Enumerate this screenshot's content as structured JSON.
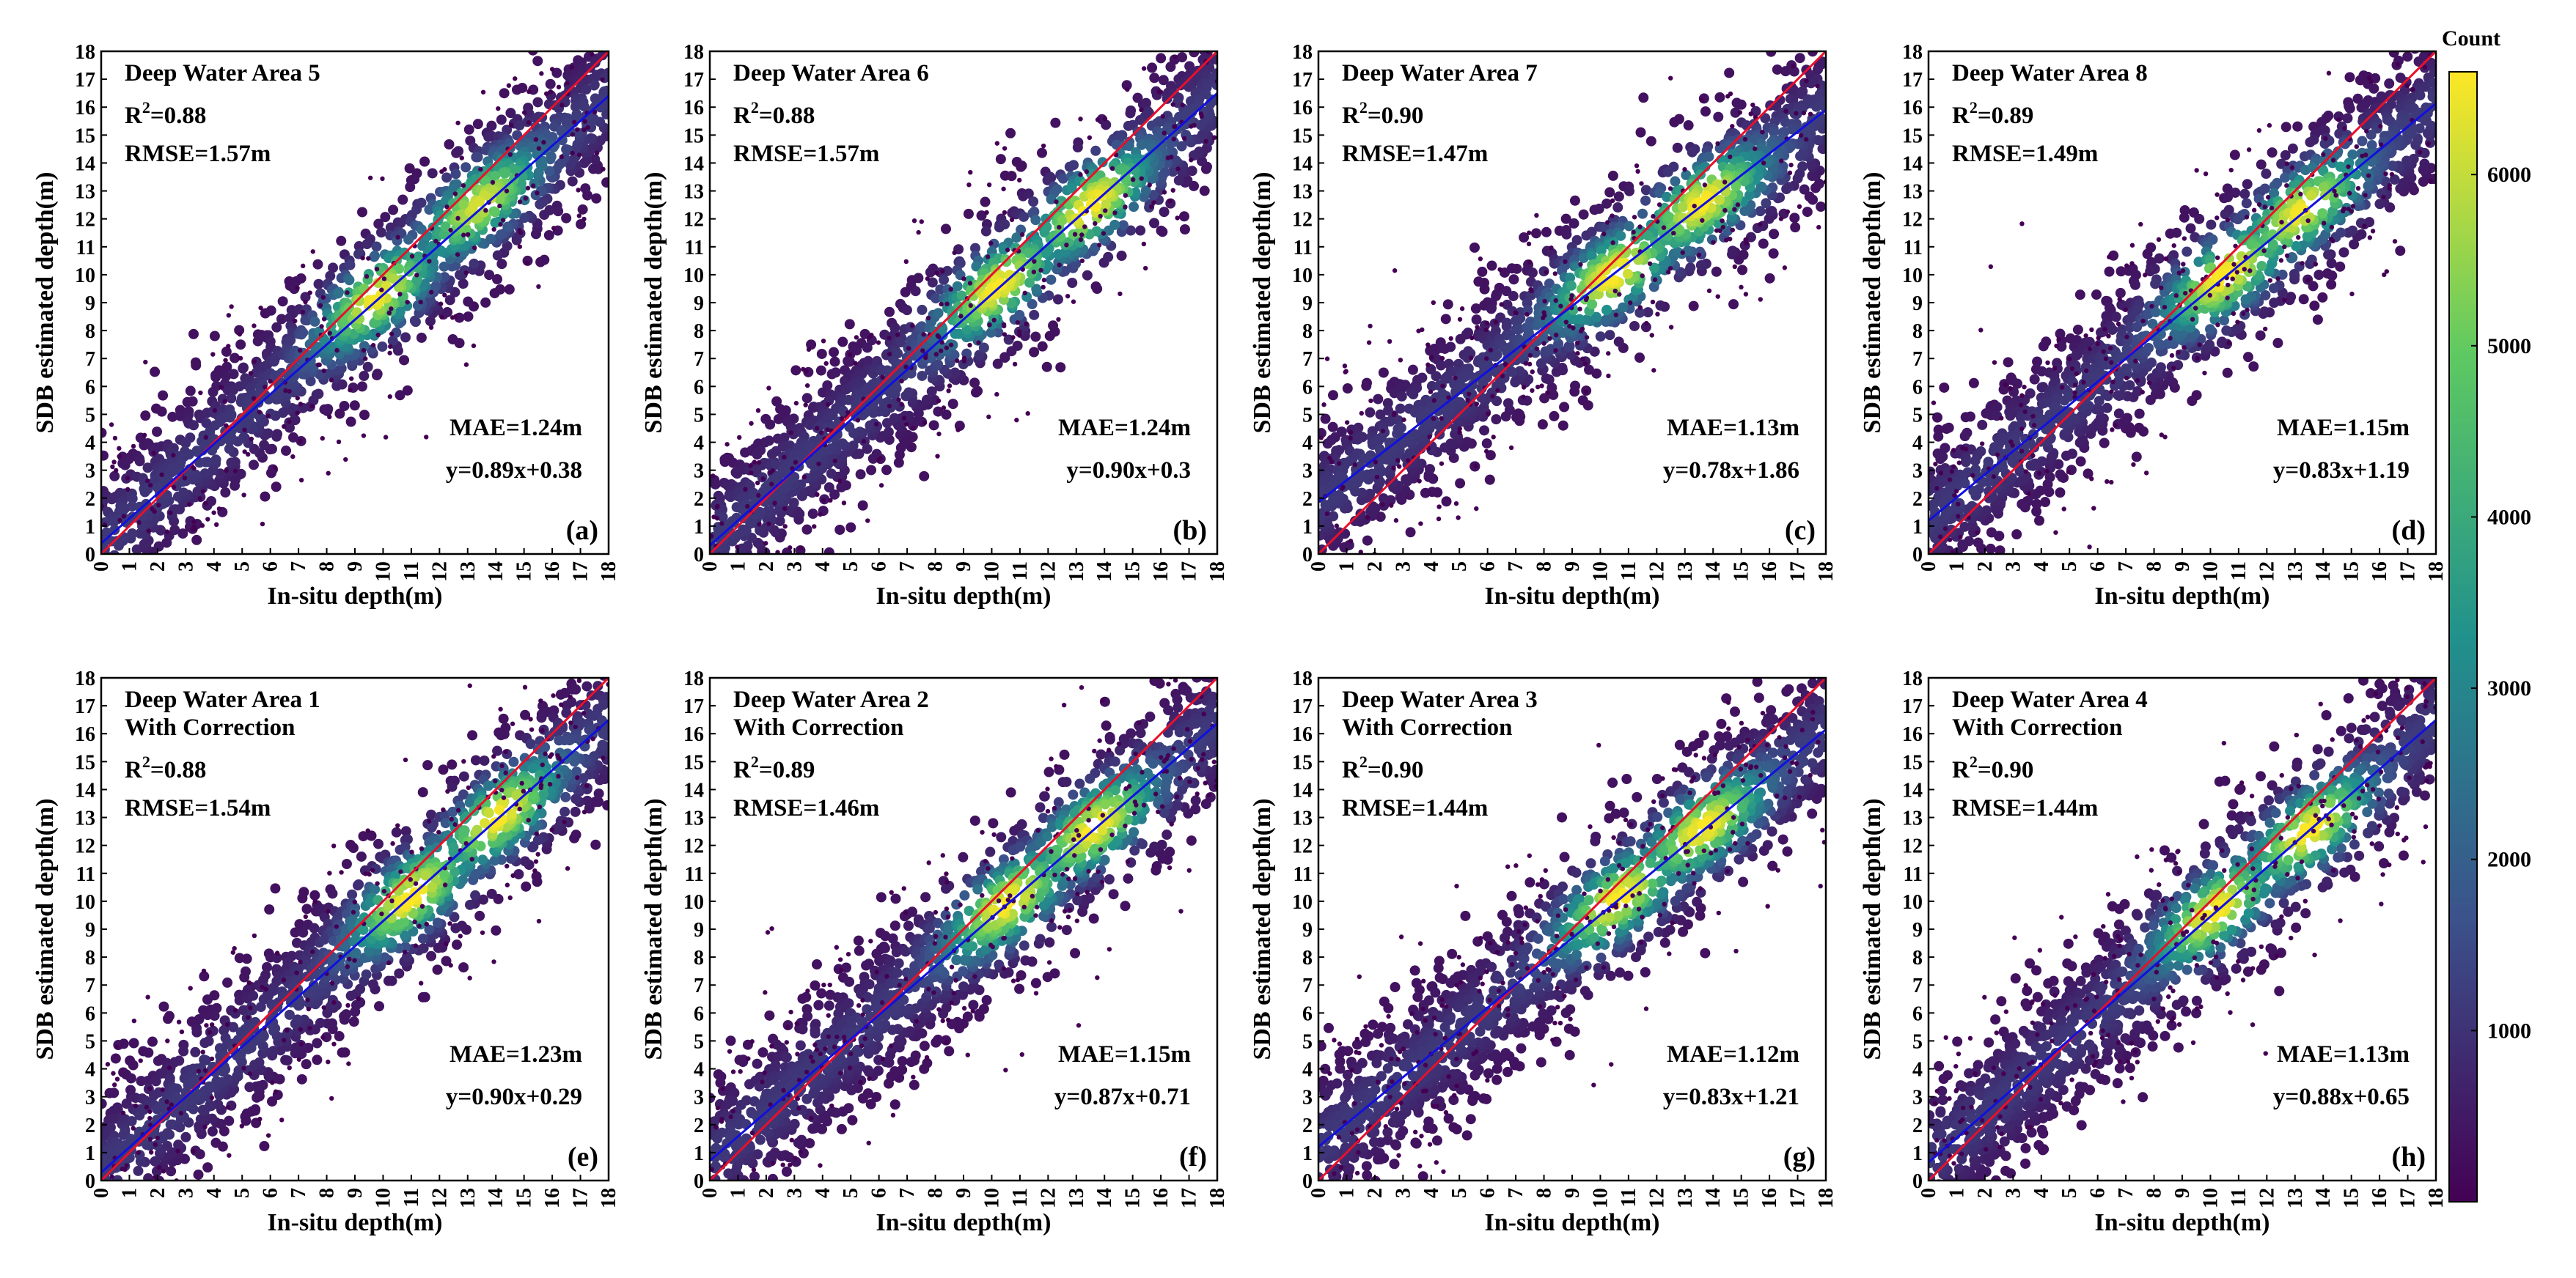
{
  "figure": {
    "x_axis_label": "In-situ depth(m)",
    "y_axis_label": "SDB estimated depth(m)",
    "colorbar": {
      "title": "Count",
      "ticks": [
        1000,
        2000,
        3000,
        4000,
        5000,
        6000
      ],
      "range": [
        0,
        6600
      ],
      "colormap": [
        "#440154",
        "#3b528b",
        "#21918c",
        "#5ec962",
        "#fde725"
      ]
    },
    "line_colors": {
      "identity": "#e8102a",
      "fit": "#1010e0"
    }
  },
  "chart_data": [
    {
      "type": "scatter",
      "id": "a",
      "panel_label": "(a)",
      "title": "Deep Water Area 5",
      "subtitle": "",
      "r2_label": "R",
      "r2_value": "=0.88",
      "rmse": "RMSE=1.57m",
      "mae": "MAE=1.24m",
      "equation": "y=0.89x+0.38",
      "slope": 0.89,
      "intercept": 0.38,
      "xlim": [
        0,
        18
      ],
      "ylim": [
        0,
        18
      ],
      "xticks": [
        0,
        1,
        2,
        3,
        4,
        5,
        6,
        7,
        8,
        9,
        10,
        11,
        12,
        13,
        14,
        15,
        16,
        17,
        18
      ],
      "yticks": [
        0,
        1,
        2,
        3,
        4,
        5,
        6,
        7,
        8,
        9,
        10,
        11,
        12,
        13,
        14,
        15,
        16,
        17,
        18
      ],
      "density_peaks": [
        [
          9.5,
          9.5
        ],
        [
          13,
          13
        ]
      ]
    },
    {
      "type": "scatter",
      "id": "b",
      "panel_label": "(b)",
      "title": "Deep Water Area 6",
      "subtitle": "",
      "r2_label": "R",
      "r2_value": "=0.88",
      "rmse": "RMSE=1.57m",
      "mae": "MAE=1.24m",
      "equation": "y=0.90x+0.3",
      "slope": 0.9,
      "intercept": 0.3,
      "xlim": [
        0,
        18
      ],
      "ylim": [
        0,
        18
      ],
      "xticks": [
        0,
        1,
        2,
        3,
        4,
        5,
        6,
        7,
        8,
        9,
        10,
        11,
        12,
        13,
        14,
        15,
        16,
        17,
        18
      ],
      "yticks": [
        0,
        1,
        2,
        3,
        4,
        5,
        6,
        7,
        8,
        9,
        10,
        11,
        12,
        13,
        14,
        15,
        16,
        17,
        18
      ],
      "density_peaks": [
        [
          10,
          9.8
        ],
        [
          13.5,
          12.5
        ]
      ]
    },
    {
      "type": "scatter",
      "id": "c",
      "panel_label": "(c)",
      "title": "Deep Water Area 7",
      "subtitle": "",
      "r2_label": "R",
      "r2_value": "=0.90",
      "rmse": "RMSE=1.47m",
      "mae": "MAE=1.13m",
      "equation": "y=0.78x+1.86",
      "slope": 0.78,
      "intercept": 1.86,
      "xlim": [
        0,
        18
      ],
      "ylim": [
        0,
        18
      ],
      "xticks": [
        0,
        1,
        2,
        3,
        4,
        5,
        6,
        7,
        8,
        9,
        10,
        11,
        12,
        13,
        14,
        15,
        16,
        17,
        18
      ],
      "yticks": [
        0,
        1,
        2,
        3,
        4,
        5,
        6,
        7,
        8,
        9,
        10,
        11,
        12,
        13,
        14,
        15,
        16,
        17,
        18
      ],
      "density_peaks": [
        [
          10.5,
          10
        ],
        [
          13.5,
          12.8
        ]
      ]
    },
    {
      "type": "scatter",
      "id": "d",
      "panel_label": "(d)",
      "title": "Deep Water Area 8",
      "subtitle": "",
      "r2_label": "R",
      "r2_value": "=0.89",
      "rmse": "RMSE=1.49m",
      "mae": "MAE=1.15m",
      "equation": "y=0.83x+1.19",
      "slope": 0.83,
      "intercept": 1.19,
      "xlim": [
        0,
        18
      ],
      "ylim": [
        0,
        18
      ],
      "xticks": [
        0,
        1,
        2,
        3,
        4,
        5,
        6,
        7,
        8,
        9,
        10,
        11,
        12,
        13,
        14,
        15,
        16,
        17,
        18
      ],
      "yticks": [
        0,
        1,
        2,
        3,
        4,
        5,
        6,
        7,
        8,
        9,
        10,
        11,
        12,
        13,
        14,
        15,
        16,
        17,
        18
      ],
      "density_peaks": [
        [
          10.5,
          10
        ],
        [
          13,
          12.6
        ]
      ]
    },
    {
      "type": "scatter",
      "id": "e",
      "panel_label": "(e)",
      "title": "Deep Water Area 1",
      "subtitle": "With Correction",
      "r2_label": "R",
      "r2_value": "=0.88",
      "rmse": "RMSE=1.54m",
      "mae": "MAE=1.23m",
      "equation": "y=0.90x+0.29",
      "slope": 0.9,
      "intercept": 0.29,
      "xlim": [
        0,
        18
      ],
      "ylim": [
        0,
        18
      ],
      "xticks": [
        0,
        1,
        2,
        3,
        4,
        5,
        6,
        7,
        8,
        9,
        10,
        11,
        12,
        13,
        14,
        15,
        16,
        17,
        18
      ],
      "yticks": [
        0,
        1,
        2,
        3,
        4,
        5,
        6,
        7,
        8,
        9,
        10,
        11,
        12,
        13,
        14,
        15,
        16,
        17,
        18
      ],
      "density_peaks": [
        [
          11,
          10.2
        ],
        [
          14,
          13.2
        ]
      ]
    },
    {
      "type": "scatter",
      "id": "f",
      "panel_label": "(f)",
      "title": "Deep Water Area 2",
      "subtitle": "With Correction",
      "r2_label": "R",
      "r2_value": "=0.89",
      "rmse": "RMSE=1.46m",
      "mae": "MAE=1.15m",
      "equation": "y=0.87x+0.71",
      "slope": 0.87,
      "intercept": 0.71,
      "xlim": [
        0,
        18
      ],
      "ylim": [
        0,
        18
      ],
      "xticks": [
        0,
        1,
        2,
        3,
        4,
        5,
        6,
        7,
        8,
        9,
        10,
        11,
        12,
        13,
        14,
        15,
        16,
        17,
        18
      ],
      "yticks": [
        0,
        1,
        2,
        3,
        4,
        5,
        6,
        7,
        8,
        9,
        10,
        11,
        12,
        13,
        14,
        15,
        16,
        17,
        18
      ],
      "density_peaks": [
        [
          10.5,
          10
        ],
        [
          13.5,
          12.8
        ]
      ]
    },
    {
      "type": "scatter",
      "id": "g",
      "panel_label": "(g)",
      "title": "Deep Water Area 3",
      "subtitle": "With Correction",
      "r2_label": "R",
      "r2_value": "=0.90",
      "rmse": "RMSE=1.44m",
      "mae": "MAE=1.12m",
      "equation": "y=0.83x+1.21",
      "slope": 0.83,
      "intercept": 1.21,
      "xlim": [
        0,
        18
      ],
      "ylim": [
        0,
        18
      ],
      "xticks": [
        0,
        1,
        2,
        3,
        4,
        5,
        6,
        7,
        8,
        9,
        10,
        11,
        12,
        13,
        14,
        15,
        16,
        17,
        18
      ],
      "yticks": [
        0,
        1,
        2,
        3,
        4,
        5,
        6,
        7,
        8,
        9,
        10,
        11,
        12,
        13,
        14,
        15,
        16,
        17,
        18
      ],
      "density_peaks": [
        [
          10.5,
          10.2
        ],
        [
          13.5,
          12.8
        ]
      ]
    },
    {
      "type": "scatter",
      "id": "h",
      "panel_label": "(h)",
      "title": "Deep Water Area 4",
      "subtitle": "With Correction",
      "r2_label": "R",
      "r2_value": "=0.90",
      "rmse": "RMSE=1.44m",
      "mae": "MAE=1.13m",
      "equation": "y=0.88x+0.65",
      "slope": 0.88,
      "intercept": 0.65,
      "xlim": [
        0,
        18
      ],
      "ylim": [
        0,
        18
      ],
      "xticks": [
        0,
        1,
        2,
        3,
        4,
        5,
        6,
        7,
        8,
        9,
        10,
        11,
        12,
        13,
        14,
        15,
        16,
        17,
        18
      ],
      "yticks": [
        0,
        1,
        2,
        3,
        4,
        5,
        6,
        7,
        8,
        9,
        10,
        11,
        12,
        13,
        14,
        15,
        16,
        17,
        18
      ],
      "density_peaks": [
        [
          10,
          9.8
        ],
        [
          13.5,
          12.6
        ]
      ]
    }
  ]
}
